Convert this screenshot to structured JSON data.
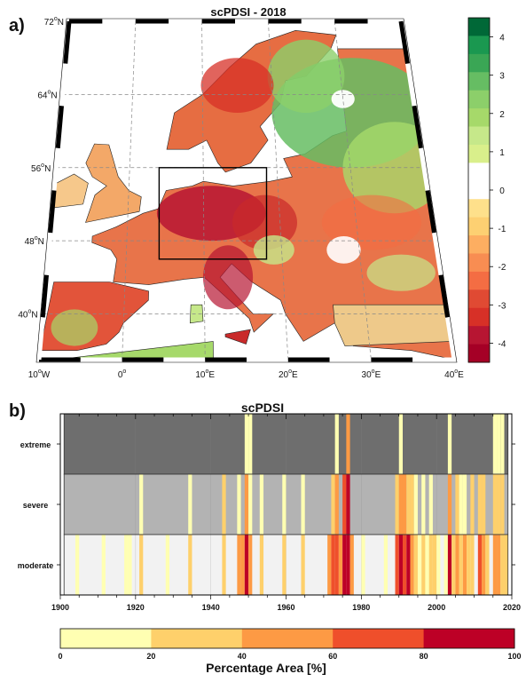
{
  "panel_a": {
    "label": "a)",
    "title": "scPDSI - 2018",
    "lat_labels": [
      {
        "deg": 72,
        "text": "72"
      },
      {
        "deg": 64,
        "text": "64"
      },
      {
        "deg": 56,
        "text": "56"
      },
      {
        "deg": 48,
        "text": "48"
      },
      {
        "deg": 40,
        "text": "40"
      }
    ],
    "lat_suffix": "N",
    "lon_labels": [
      {
        "deg": -10,
        "text": "10",
        "suffix": "W"
      },
      {
        "deg": 0,
        "text": "0",
        "suffix": ""
      },
      {
        "deg": 10,
        "text": "10",
        "suffix": "E"
      },
      {
        "deg": 20,
        "text": "20",
        "suffix": "E"
      },
      {
        "deg": 30,
        "text": "30",
        "suffix": "E"
      },
      {
        "deg": 40,
        "text": "40",
        "suffix": "E"
      }
    ],
    "degree_symbol": "o",
    "colorbar": {
      "ticks": [
        "4",
        "3",
        "2",
        "1",
        "0",
        "-1",
        "-2",
        "-3",
        "-4"
      ],
      "range": [
        -4.5,
        4.5
      ],
      "colors": [
        "#006837",
        "#1a9850",
        "#3aa655",
        "#66bd63",
        "#8ccf6a",
        "#a6d96a",
        "#c6e88a",
        "#d9ef8b",
        "#ffffff",
        "#ffffff",
        "#fee08b",
        "#fdd072",
        "#fdae61",
        "#f88d52",
        "#f46d43",
        "#e04a33",
        "#d73027",
        "#b71532",
        "#a50026"
      ]
    },
    "box": {
      "lon": [
        4,
        18
      ],
      "lat": [
        46,
        56
      ]
    }
  },
  "panel_b": {
    "label": "b)",
    "title": "scPDSI",
    "y_categories": [
      "extreme",
      "severe",
      "moderate"
    ],
    "x_ticks": [
      "1900",
      "1920",
      "1940",
      "1960",
      "1980",
      "2000",
      "2020"
    ],
    "colorbar": {
      "ticks": [
        "0",
        "20",
        "40",
        "60",
        "80",
        "100"
      ],
      "colors": [
        "#ffffb2",
        "#fed06b",
        "#fd9a44",
        "#ef4f2b",
        "#bd0026"
      ],
      "label": "Percentage Area [%]"
    },
    "chart_data": {
      "type": "heatmap",
      "x_range": [
        1901,
        2018
      ],
      "x_axis_range": [
        1900,
        2020
      ],
      "categories": [
        "extreme",
        "severe",
        "moderate"
      ],
      "value_units": "percent area",
      "background_colors": {
        "extreme": "#6e6e6e",
        "severe": "#b3b3b3",
        "moderate": "#f2f2f2"
      },
      "extreme": [
        [
          1949,
          10
        ],
        [
          1950,
          10
        ],
        [
          1973,
          10
        ],
        [
          1976,
          40
        ],
        [
          1990,
          10
        ],
        [
          2003,
          10
        ],
        [
          2015,
          10
        ],
        [
          2016,
          10
        ],
        [
          2017,
          10
        ]
      ],
      "severe": [
        [
          1921,
          10
        ],
        [
          1934,
          10
        ],
        [
          1943,
          30
        ],
        [
          1947,
          10
        ],
        [
          1949,
          40
        ],
        [
          1950,
          10
        ],
        [
          1953,
          10
        ],
        [
          1959,
          10
        ],
        [
          1964,
          10
        ],
        [
          1972,
          30
        ],
        [
          1973,
          50
        ],
        [
          1975,
          60
        ],
        [
          1976,
          80
        ],
        [
          1989,
          30
        ],
        [
          1990,
          40
        ],
        [
          1991,
          40
        ],
        [
          1992,
          30
        ],
        [
          1993,
          20
        ],
        [
          1994,
          10
        ],
        [
          1996,
          10
        ],
        [
          1998,
          10
        ],
        [
          2003,
          50
        ],
        [
          2005,
          30
        ],
        [
          2006,
          10
        ],
        [
          2007,
          10
        ],
        [
          2009,
          20
        ],
        [
          2011,
          30
        ],
        [
          2012,
          30
        ],
        [
          2015,
          30
        ],
        [
          2016,
          30
        ],
        [
          2017,
          30
        ]
      ],
      "moderate": [
        [
          1904,
          10
        ],
        [
          1911,
          10
        ],
        [
          1917,
          10
        ],
        [
          1918,
          10
        ],
        [
          1921,
          20
        ],
        [
          1928,
          10
        ],
        [
          1934,
          30
        ],
        [
          1943,
          30
        ],
        [
          1947,
          50
        ],
        [
          1948,
          40
        ],
        [
          1949,
          90
        ],
        [
          1950,
          40
        ],
        [
          1953,
          30
        ],
        [
          1959,
          30
        ],
        [
          1964,
          30
        ],
        [
          1971,
          40
        ],
        [
          1972,
          60
        ],
        [
          1973,
          70
        ],
        [
          1974,
          40
        ],
        [
          1975,
          80
        ],
        [
          1976,
          90
        ],
        [
          1977,
          40
        ],
        [
          1980,
          10
        ],
        [
          1986,
          10
        ],
        [
          1989,
          70
        ],
        [
          1990,
          80
        ],
        [
          1991,
          60
        ],
        [
          1992,
          80
        ],
        [
          1993,
          50
        ],
        [
          1994,
          30
        ],
        [
          1995,
          10
        ],
        [
          1996,
          30
        ],
        [
          1997,
          10
        ],
        [
          1998,
          30
        ],
        [
          1999,
          20
        ],
        [
          2000,
          10
        ],
        [
          2002,
          10
        ],
        [
          2003,
          90
        ],
        [
          2004,
          30
        ],
        [
          2005,
          50
        ],
        [
          2006,
          30
        ],
        [
          2007,
          40
        ],
        [
          2008,
          30
        ],
        [
          2009,
          30
        ],
        [
          2011,
          60
        ],
        [
          2012,
          40
        ],
        [
          2013,
          30
        ],
        [
          2015,
          50
        ],
        [
          2016,
          40
        ],
        [
          2017,
          30
        ],
        [
          2018,
          30
        ]
      ]
    }
  }
}
